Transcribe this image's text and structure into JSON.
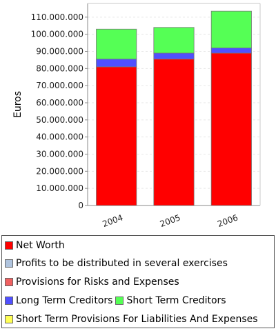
{
  "chart_data": {
    "type": "bar",
    "stacked": true,
    "categories": [
      "2004",
      "2005",
      "2006"
    ],
    "ylabel": "Euros",
    "ylim": [
      0,
      118000000
    ],
    "y_ticks": [
      0,
      10000000,
      20000000,
      30000000,
      40000000,
      50000000,
      60000000,
      70000000,
      80000000,
      90000000,
      100000000,
      110000000
    ],
    "y_tick_labels": [
      "0",
      "10.000.000",
      "20.000.000",
      "30.000.000",
      "40.000.000",
      "50.000.000",
      "60.000.000",
      "70.000.000",
      "80.000.000",
      "90.000.000",
      "100.000.000",
      "110.000.000"
    ],
    "grid": true,
    "legend_position": "bottom",
    "series": [
      {
        "name": "Net Worth",
        "color": "#ff0000",
        "values": [
          81000000,
          85500000,
          89000000
        ]
      },
      {
        "name": "Profits to be distributed in several exercises",
        "color": "#b0c4de",
        "values": [
          0,
          0,
          0
        ]
      },
      {
        "name": "Provisions for Risks and Expenses",
        "color": "#f06060",
        "values": [
          0,
          0,
          0
        ]
      },
      {
        "name": "Long Term Creditors",
        "color": "#5050ff",
        "values": [
          4500000,
          3500000,
          3000000
        ]
      },
      {
        "name": "Short Term Creditors",
        "color": "#55ff55",
        "values": [
          17500000,
          15000000,
          21500000
        ]
      },
      {
        "name": "Short Term Provisions For Liabilities And Expenses",
        "color": "#ffff55",
        "values": [
          0,
          0,
          0
        ]
      }
    ]
  },
  "legend": {
    "rows": [
      [
        "Net Worth"
      ],
      [
        "Profits to be distributed in several exercises"
      ],
      [
        "Provisions for Risks and Expenses"
      ],
      [
        "Long Term Creditors",
        "Short Term Creditors"
      ],
      [
        "Short Term Provisions For Liabilities And Expenses"
      ]
    ]
  }
}
